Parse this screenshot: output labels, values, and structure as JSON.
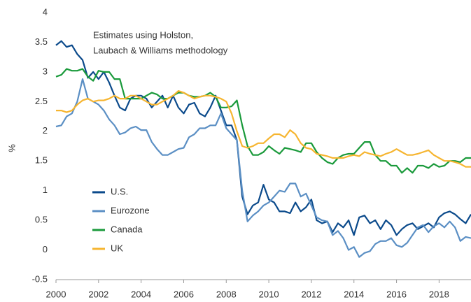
{
  "chart_data": {
    "type": "line",
    "annotation": [
      "Estimates using Holston,",
      "Laubach & Williams methodology"
    ],
    "y_label": "%",
    "x": [
      2000,
      2000.25,
      2000.5,
      2000.75,
      2001,
      2001.25,
      2001.5,
      2001.75,
      2002,
      2002.25,
      2002.5,
      2002.75,
      2003,
      2003.25,
      2003.5,
      2003.75,
      2004,
      2004.25,
      2004.5,
      2004.75,
      2005,
      2005.25,
      2005.5,
      2005.75,
      2006,
      2006.25,
      2006.5,
      2006.75,
      2007,
      2007.25,
      2007.5,
      2007.75,
      2008,
      2008.25,
      2008.5,
      2008.75,
      2009,
      2009.25,
      2009.5,
      2009.75,
      2010,
      2010.25,
      2010.5,
      2010.75,
      2011,
      2011.25,
      2011.5,
      2011.75,
      2012,
      2012.25,
      2012.5,
      2012.75,
      2013,
      2013.25,
      2013.5,
      2013.75,
      2014,
      2014.25,
      2014.5,
      2014.75,
      2015,
      2015.25,
      2015.5,
      2015.75,
      2016,
      2016.25,
      2016.5,
      2016.75,
      2017,
      2017.25,
      2017.5,
      2017.75,
      2018,
      2018.25,
      2018.5,
      2018.75,
      2019,
      2019.25,
      2019.5
    ],
    "series": [
      {
        "name": "U.S.",
        "color": "#0b4a8b",
        "values": [
          3.45,
          3.52,
          3.42,
          3.45,
          3.3,
          3.2,
          2.9,
          3.0,
          2.88,
          3.0,
          2.82,
          2.6,
          2.4,
          2.35,
          2.55,
          2.6,
          2.6,
          2.55,
          2.4,
          2.5,
          2.6,
          2.4,
          2.6,
          2.4,
          2.3,
          2.45,
          2.48,
          2.3,
          2.25,
          2.4,
          2.6,
          2.35,
          2.1,
          2.1,
          1.85,
          0.9,
          0.6,
          0.75,
          0.8,
          1.1,
          0.85,
          0.8,
          0.65,
          0.65,
          0.62,
          0.8,
          0.65,
          0.72,
          0.85,
          0.5,
          0.45,
          0.48,
          0.3,
          0.45,
          0.38,
          0.5,
          0.25,
          0.55,
          0.58,
          0.45,
          0.5,
          0.35,
          0.5,
          0.42,
          0.25,
          0.35,
          0.42,
          0.45,
          0.35,
          0.4,
          0.45,
          0.38,
          0.55,
          0.62,
          0.65,
          0.6,
          0.52,
          0.45,
          0.6
        ]
      },
      {
        "name": "Eurozone",
        "color": "#5b8fc4",
        "values": [
          2.08,
          2.1,
          2.25,
          2.3,
          2.5,
          2.88,
          2.55,
          2.5,
          2.45,
          2.35,
          2.2,
          2.1,
          1.95,
          1.98,
          2.05,
          2.08,
          2.02,
          2.02,
          1.82,
          1.7,
          1.6,
          1.6,
          1.65,
          1.7,
          1.72,
          1.9,
          1.95,
          2.05,
          2.05,
          2.1,
          2.1,
          2.3,
          2.05,
          1.95,
          1.85,
          1.0,
          0.48,
          0.58,
          0.65,
          0.75,
          0.8,
          0.9,
          1.0,
          0.98,
          1.12,
          1.12,
          0.9,
          0.95,
          0.75,
          0.55,
          0.5,
          0.48,
          0.25,
          0.32,
          0.2,
          0.0,
          0.05,
          -0.12,
          -0.05,
          -0.02,
          0.1,
          0.15,
          0.15,
          0.2,
          0.08,
          0.05,
          0.12,
          0.25,
          0.38,
          0.42,
          0.3,
          0.4,
          0.45,
          0.38,
          0.48,
          0.38,
          0.15,
          0.22,
          0.2
        ]
      },
      {
        "name": "Canada",
        "color": "#1a9a3b",
        "values": [
          2.92,
          2.95,
          3.05,
          3.02,
          3.02,
          3.05,
          2.92,
          2.85,
          3.02,
          3.0,
          3.0,
          2.88,
          2.88,
          2.55,
          2.55,
          2.55,
          2.55,
          2.6,
          2.65,
          2.62,
          2.55,
          2.55,
          2.6,
          2.65,
          2.65,
          2.6,
          2.58,
          2.58,
          2.6,
          2.65,
          2.58,
          2.4,
          2.4,
          2.42,
          2.52,
          2.1,
          1.75,
          1.6,
          1.6,
          1.65,
          1.75,
          1.68,
          1.62,
          1.72,
          1.7,
          1.68,
          1.65,
          1.8,
          1.8,
          1.65,
          1.55,
          1.48,
          1.45,
          1.55,
          1.6,
          1.62,
          1.62,
          1.72,
          1.82,
          1.82,
          1.6,
          1.5,
          1.5,
          1.42,
          1.42,
          1.3,
          1.38,
          1.3,
          1.42,
          1.42,
          1.38,
          1.45,
          1.4,
          1.42,
          1.5,
          1.5,
          1.48,
          1.55,
          1.55
        ]
      },
      {
        "name": "UK",
        "color": "#f6b530",
        "values": [
          2.35,
          2.35,
          2.32,
          2.35,
          2.45,
          2.52,
          2.55,
          2.5,
          2.52,
          2.52,
          2.55,
          2.6,
          2.55,
          2.55,
          2.6,
          2.6,
          2.55,
          2.5,
          2.45,
          2.45,
          2.5,
          2.55,
          2.6,
          2.68,
          2.65,
          2.6,
          2.55,
          2.58,
          2.6,
          2.6,
          2.58,
          2.55,
          2.5,
          2.3,
          2.0,
          1.75,
          1.72,
          1.75,
          1.8,
          1.8,
          1.88,
          1.95,
          1.95,
          1.9,
          2.02,
          1.95,
          1.8,
          1.72,
          1.7,
          1.62,
          1.6,
          1.58,
          1.55,
          1.55,
          1.55,
          1.58,
          1.6,
          1.58,
          1.65,
          1.62,
          1.6,
          1.58,
          1.62,
          1.65,
          1.7,
          1.65,
          1.6,
          1.6,
          1.62,
          1.65,
          1.68,
          1.6,
          1.55,
          1.5,
          1.5,
          1.48,
          1.45,
          1.4,
          1.4
        ]
      }
    ],
    "xlim": [
      2000,
      2019.5
    ],
    "xticks": [
      2000,
      2002,
      2004,
      2006,
      2008,
      2010,
      2012,
      2014,
      2016,
      2018
    ],
    "ylim": [
      -0.5,
      4
    ],
    "yticks": [
      -0.5,
      0,
      0.5,
      1,
      1.5,
      2,
      2.5,
      3,
      3.5,
      4
    ],
    "grid": false
  }
}
